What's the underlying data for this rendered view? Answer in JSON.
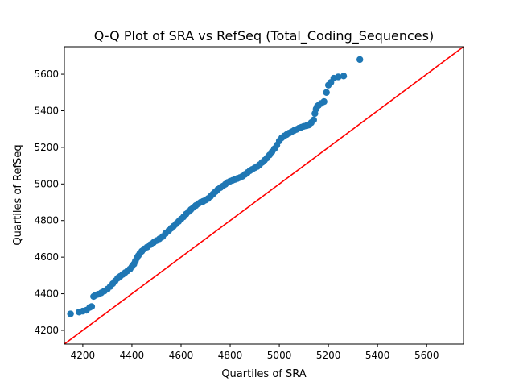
{
  "chart_data": {
    "type": "scatter",
    "title": "Q-Q Plot of SRA vs RefSeq (Total_Coding_Sequences)",
    "xlabel": "Quartiles of SRA",
    "ylabel": "Quartiles of RefSeq",
    "xlim": [
      4125,
      5750
    ],
    "ylim": [
      4125,
      5750
    ],
    "xticks": [
      4200,
      4400,
      4600,
      4800,
      5000,
      5200,
      5400,
      5600
    ],
    "yticks": [
      4200,
      4400,
      4600,
      4800,
      5000,
      5200,
      5400,
      5600
    ],
    "grid": false,
    "legend": "none",
    "colors": {
      "points": "#1f77b4",
      "reference_line": "#ff0000"
    },
    "reference_line": {
      "from": [
        4125,
        4125
      ],
      "to": [
        5750,
        5750
      ]
    },
    "series": [
      {
        "x": [
          4150,
          4185,
          4200,
          4215,
          4228,
          4236,
          4244,
          4252,
          4262,
          4275,
          4288,
          4300,
          4312,
          4322,
          4332,
          4342,
          4352,
          4362,
          4372,
          4382,
          4392,
          4400,
          4408,
          4414,
          4420,
          4426,
          4432,
          4440,
          4450,
          4462,
          4475,
          4488,
          4500,
          4512,
          4525,
          4537,
          4550,
          4560,
          4570,
          4580,
          4590,
          4600,
          4610,
          4620,
          4630,
          4640,
          4650,
          4660,
          4670,
          4680,
          4690,
          4700,
          4710,
          4720,
          4730,
          4740,
          4750,
          4760,
          4770,
          4780,
          4790,
          4800,
          4810,
          4820,
          4830,
          4840,
          4850,
          4860,
          4870,
          4880,
          4890,
          4900,
          4910,
          4920,
          4930,
          4940,
          4950,
          4960,
          4970,
          4980,
          4990,
          5000,
          5010,
          5020,
          5030,
          5040,
          5050,
          5060,
          5070,
          5080,
          5090,
          5100,
          5110,
          5120,
          5130,
          5140,
          5145,
          5150,
          5155,
          5160,
          5170,
          5182,
          5192,
          5200,
          5210,
          5222,
          5240,
          5262,
          5328
        ],
        "y": [
          4290,
          4300,
          4305,
          4310,
          4325,
          4330,
          4385,
          4392,
          4397,
          4405,
          4415,
          4425,
          4440,
          4455,
          4470,
          4485,
          4495,
          4505,
          4515,
          4525,
          4535,
          4548,
          4562,
          4578,
          4595,
          4608,
          4620,
          4632,
          4645,
          4655,
          4668,
          4680,
          4690,
          4700,
          4712,
          4730,
          4745,
          4758,
          4770,
          4782,
          4795,
          4808,
          4820,
          4835,
          4848,
          4860,
          4872,
          4882,
          4892,
          4900,
          4905,
          4912,
          4920,
          4932,
          4945,
          4958,
          4970,
          4980,
          4988,
          4998,
          5008,
          5015,
          5020,
          5025,
          5030,
          5035,
          5042,
          5052,
          5062,
          5072,
          5080,
          5088,
          5095,
          5105,
          5118,
          5130,
          5142,
          5158,
          5175,
          5192,
          5212,
          5235,
          5252,
          5262,
          5270,
          5278,
          5285,
          5292,
          5298,
          5305,
          5310,
          5315,
          5318,
          5322,
          5335,
          5350,
          5385,
          5410,
          5425,
          5430,
          5440,
          5450,
          5500,
          5540,
          5555,
          5578,
          5585,
          5590,
          5680
        ]
      }
    ]
  }
}
